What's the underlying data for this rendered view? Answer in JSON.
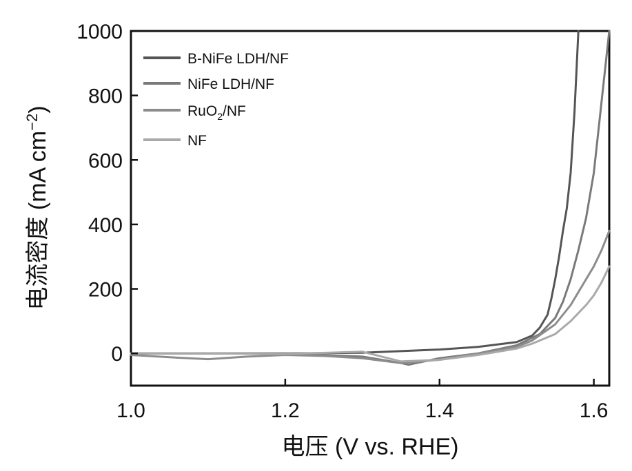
{
  "chart_data": {
    "type": "line",
    "xlabel": "电压 (V vs. RHE)",
    "ylabel_main": "电流密度 (mA cm",
    "ylabel_sup": "−2",
    "ylabel_end": ")",
    "xlim": [
      1.0,
      1.62
    ],
    "ylim": [
      -100,
      1000
    ],
    "xticks": [
      "1.0",
      "1.2",
      "1.4",
      "1.6"
    ],
    "yticks": [
      "0",
      "200",
      "400",
      "600",
      "800",
      "1000"
    ],
    "xtick_values": [
      1.0,
      1.2,
      1.4,
      1.6
    ],
    "ytick_values": [
      0,
      200,
      400,
      600,
      800,
      1000
    ],
    "legend_position": "top-left",
    "series": [
      {
        "name": "B-NiFe LDH/NF",
        "legend_main": "B-NiFe LDH/NF",
        "legend_sub": "",
        "legend_tail": "",
        "color": "#555555",
        "x": [
          1.0,
          1.1,
          1.2,
          1.3,
          1.4,
          1.45,
          1.5,
          1.52,
          1.53,
          1.54,
          1.545,
          1.55,
          1.555,
          1.56,
          1.565,
          1.57,
          1.575,
          1.58
        ],
        "y": [
          0,
          0,
          0,
          2,
          12,
          20,
          35,
          55,
          80,
          120,
          170,
          230,
          300,
          380,
          450,
          560,
          750,
          1000
        ]
      },
      {
        "name": "NiFe LDH/NF",
        "legend_main": "NiFe LDH/NF",
        "legend_sub": "",
        "legend_tail": "",
        "color": "#7a7a7a",
        "x": [
          1.0,
          1.1,
          1.2,
          1.3,
          1.35,
          1.36,
          1.37,
          1.4,
          1.45,
          1.5,
          1.53,
          1.55,
          1.56,
          1.57,
          1.58,
          1.59,
          1.6,
          1.61,
          1.62
        ],
        "y": [
          0,
          0,
          0,
          -10,
          -30,
          -35,
          -30,
          -15,
          0,
          25,
          60,
          110,
          160,
          230,
          320,
          420,
          560,
          780,
          1000
        ]
      },
      {
        "name": "RuO2/NF",
        "legend_main": "RuO",
        "legend_sub": "2",
        "legend_tail": "/NF",
        "color": "#8c8c8c",
        "x": [
          1.0,
          1.05,
          1.1,
          1.15,
          1.2,
          1.25,
          1.3,
          1.35,
          1.4,
          1.45,
          1.5,
          1.52,
          1.55,
          1.57,
          1.59,
          1.6,
          1.61,
          1.62
        ],
        "y": [
          -5,
          -12,
          -18,
          -10,
          -5,
          -8,
          -15,
          -30,
          -20,
          0,
          20,
          40,
          90,
          150,
          230,
          270,
          320,
          380
        ]
      },
      {
        "name": "NF",
        "legend_main": "NF",
        "legend_sub": "",
        "legend_tail": "",
        "color": "#a9a9a9",
        "x": [
          1.0,
          1.1,
          1.2,
          1.3,
          1.35,
          1.4,
          1.45,
          1.5,
          1.52,
          1.55,
          1.57,
          1.59,
          1.6,
          1.61,
          1.62
        ],
        "y": [
          0,
          0,
          -2,
          5,
          -25,
          -20,
          -5,
          15,
          30,
          60,
          100,
          150,
          180,
          220,
          270
        ]
      }
    ]
  }
}
